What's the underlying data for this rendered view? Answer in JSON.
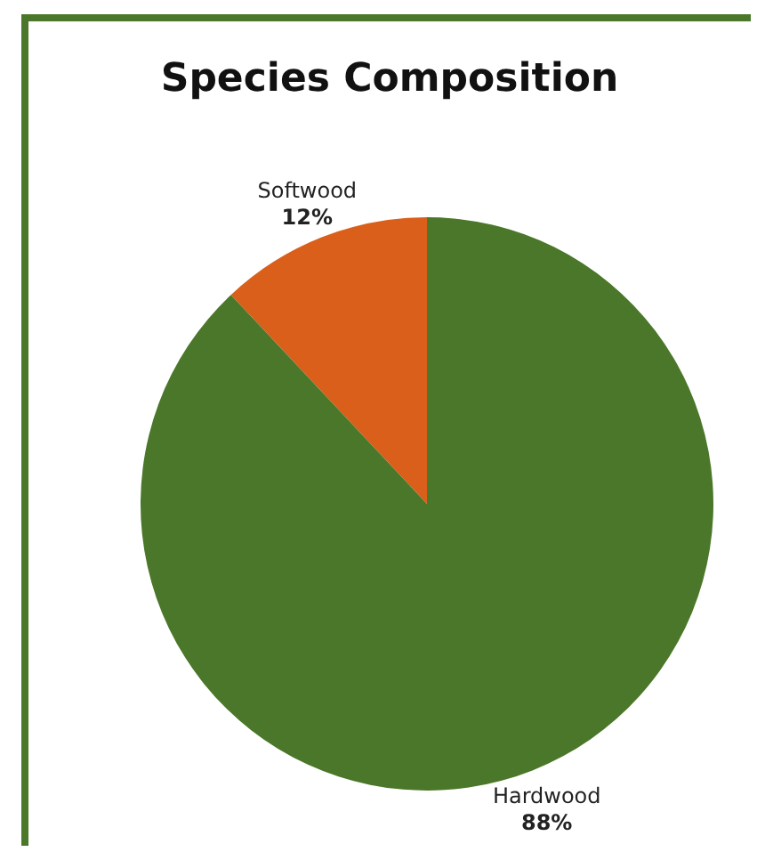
{
  "chart_data": {
    "type": "pie",
    "title": "Species Composition",
    "categories": [
      "Softwood",
      "Hardwood"
    ],
    "values": [
      12,
      88
    ],
    "colors": [
      "#d95f1a",
      "#4a7729"
    ],
    "value_labels": [
      "12%",
      "88%"
    ]
  }
}
